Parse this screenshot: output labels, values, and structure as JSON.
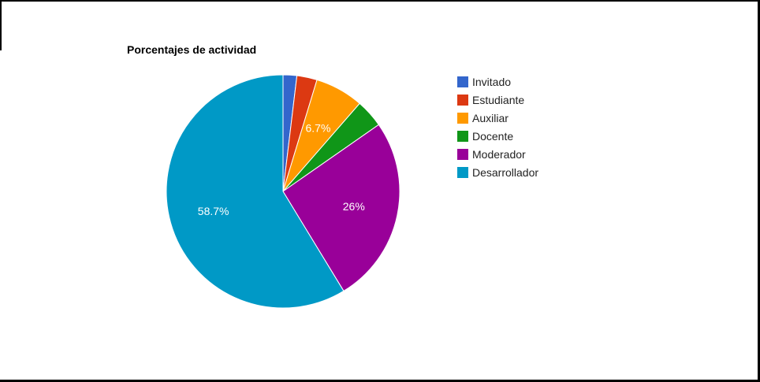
{
  "chart_data": {
    "type": "pie",
    "title": "Porcentajes de actividad",
    "legend_position": "right",
    "slices": [
      {
        "name": "Invitado",
        "value": 1.9,
        "label": "",
        "color": "#3366cc"
      },
      {
        "name": "Estudiante",
        "value": 2.8,
        "label": "",
        "color": "#dc3912"
      },
      {
        "name": "Auxiliar",
        "value": 6.7,
        "label": "6.7%",
        "color": "#ff9900"
      },
      {
        "name": "Docente",
        "value": 3.9,
        "label": "",
        "color": "#109618"
      },
      {
        "name": "Moderador",
        "value": 26,
        "label": "26%",
        "color": "#990099"
      },
      {
        "name": "Desarrollador",
        "value": 58.7,
        "label": "58.7%",
        "color": "#0099c6"
      }
    ]
  }
}
